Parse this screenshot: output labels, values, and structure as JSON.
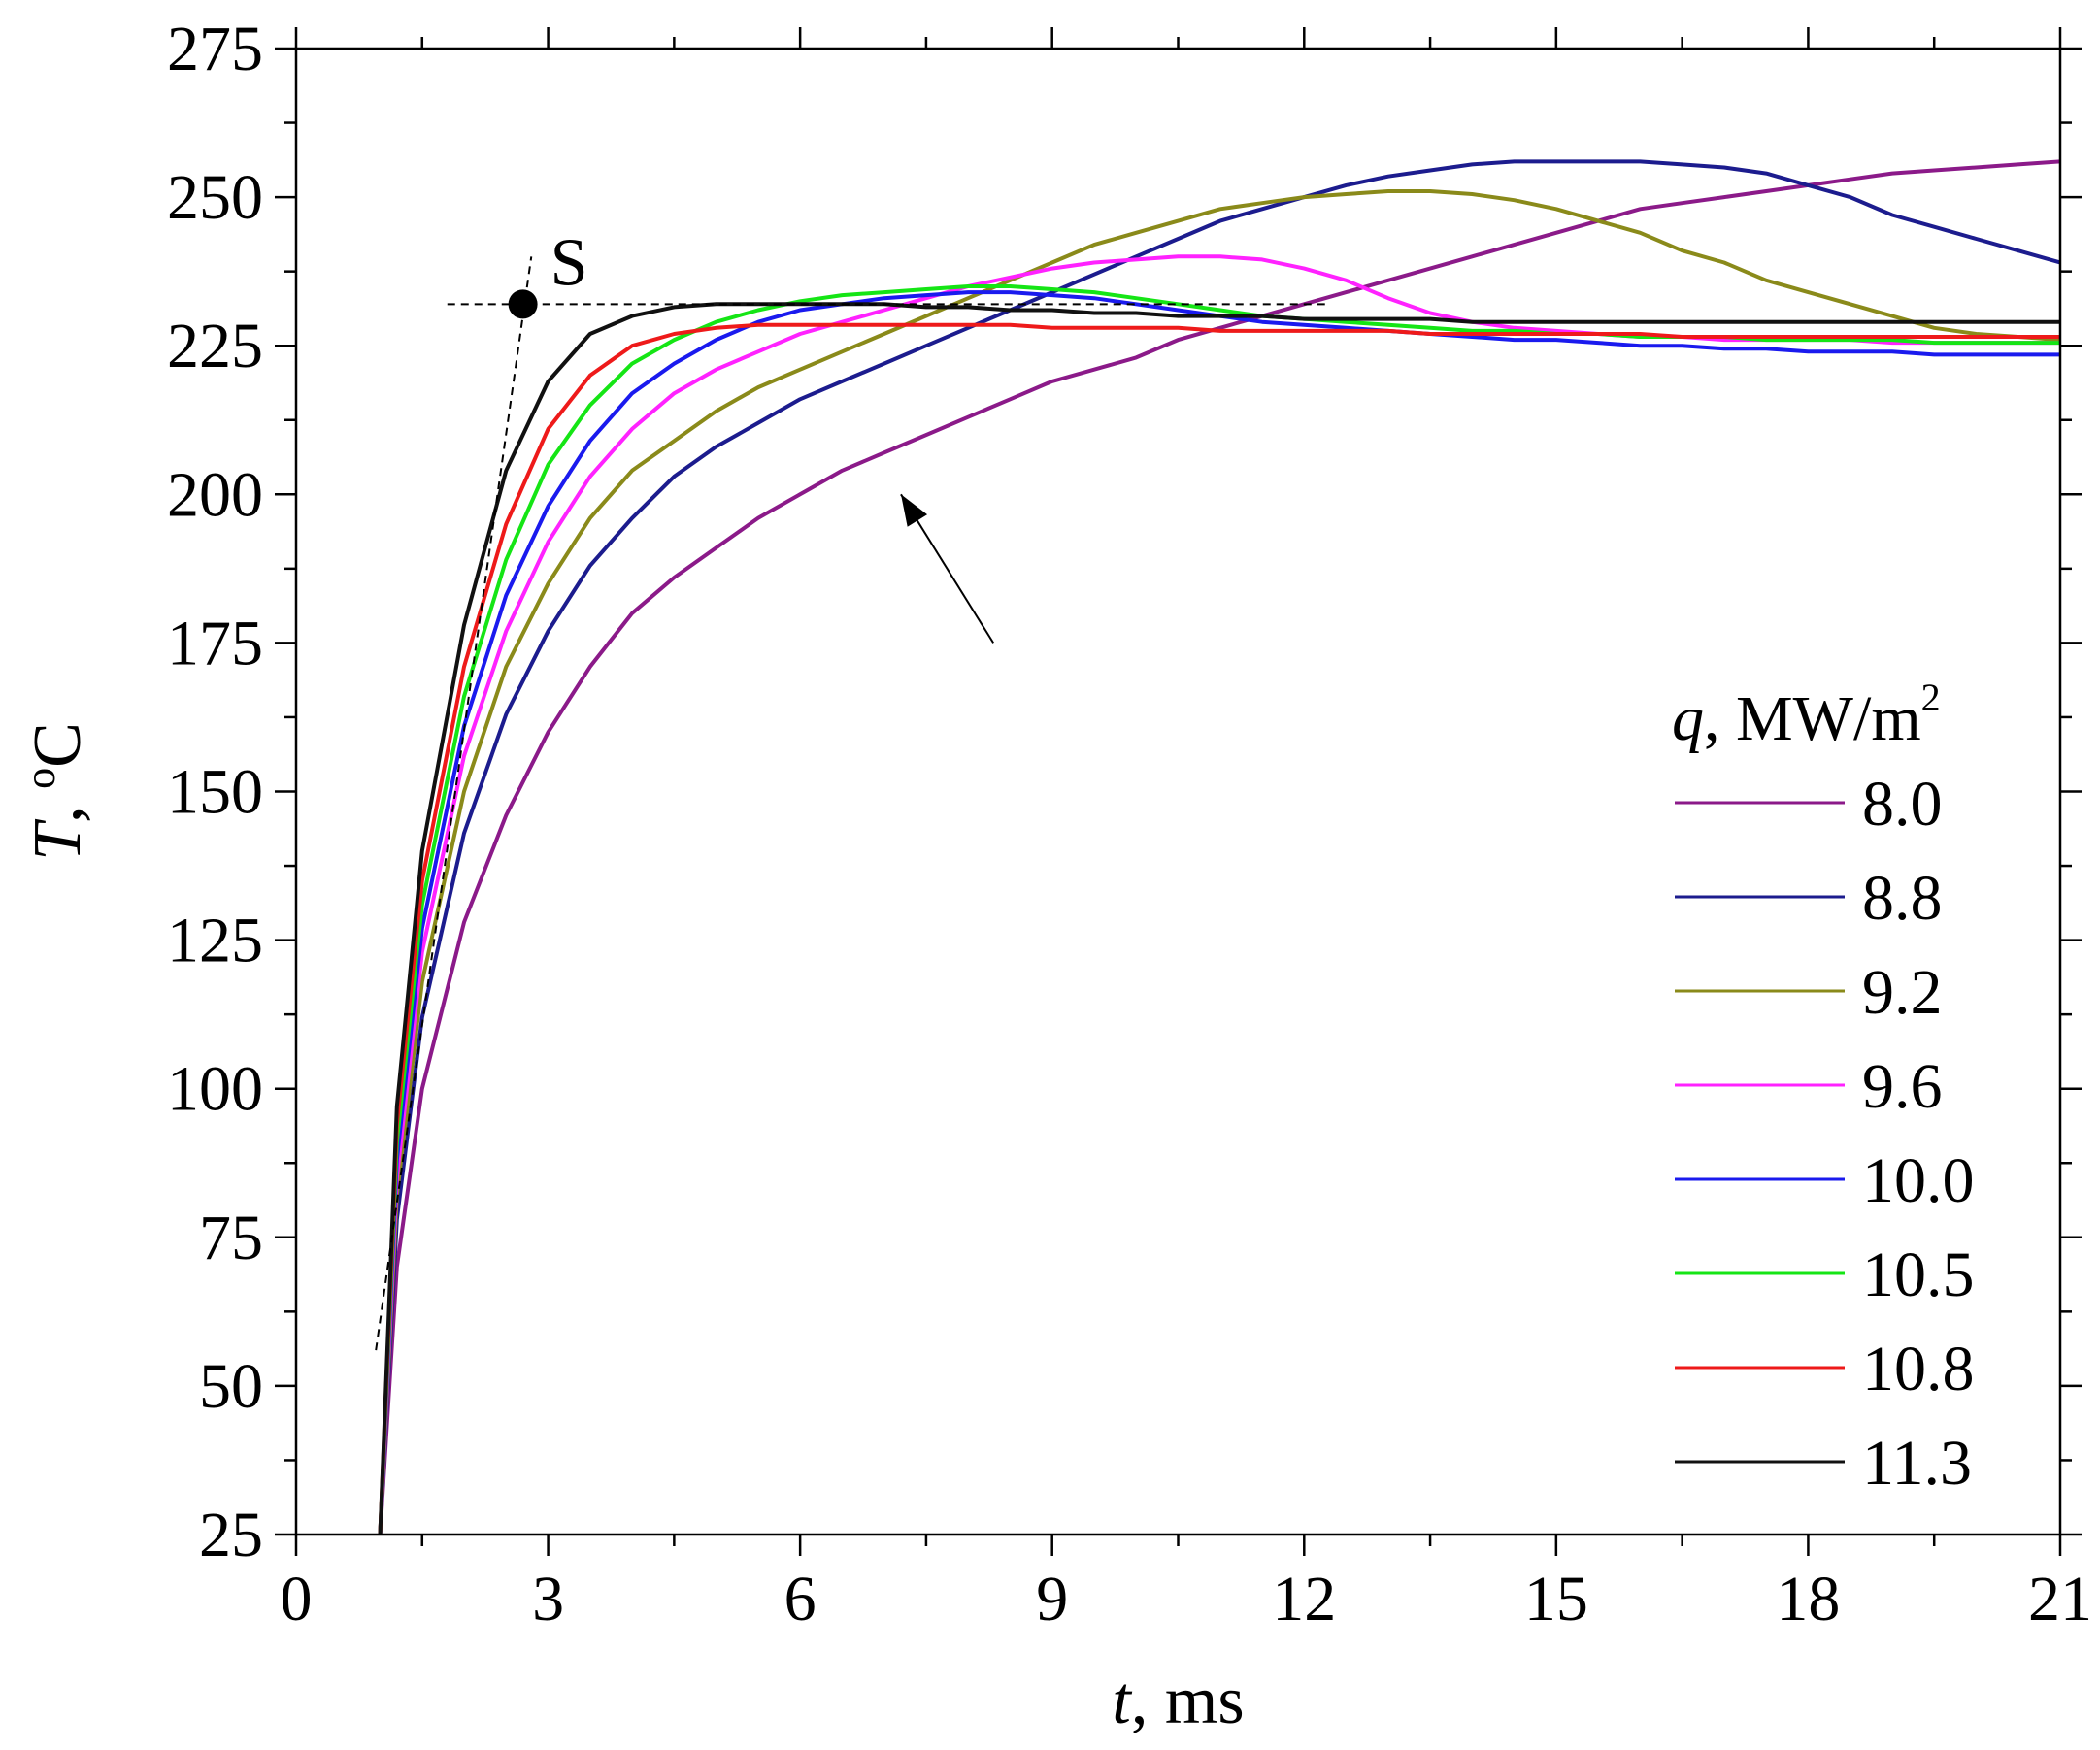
{
  "chart_data": {
    "type": "line",
    "title": "",
    "x": [
      1.0,
      1.2,
      1.5,
      2,
      2.5,
      3,
      3.5,
      4,
      4.5,
      5,
      5.5,
      6,
      6.5,
      7,
      7.5,
      8,
      8.5,
      9,
      9.5,
      10,
      10.5,
      11,
      11.5,
      12,
      12.5,
      13,
      13.5,
      14,
      14.5,
      15,
      15.5,
      16,
      16.5,
      17,
      17.5,
      18,
      18.5,
      19,
      19.5,
      20,
      20.5,
      21
    ],
    "series": [
      {
        "name": "8.0",
        "color": "#8b1a89",
        "values": [
          25,
          70,
          100,
          128,
          146,
          160,
          171,
          180,
          186,
          191,
          196,
          200,
          204,
          207,
          210,
          213,
          216,
          219,
          221,
          223,
          226,
          228,
          230,
          232,
          234,
          236,
          238,
          240,
          242,
          244,
          246,
          248,
          249,
          250,
          251,
          252,
          253,
          254,
          254.5,
          255,
          255.5,
          256
        ]
      },
      {
        "name": "8.8",
        "color": "#1c1c8e",
        "values": [
          25,
          78,
          112,
          143,
          163,
          177,
          188,
          196,
          203,
          208,
          212,
          216,
          219,
          222,
          225,
          228,
          231,
          234,
          237,
          240,
          243,
          246,
          248,
          250,
          252,
          253.5,
          254.5,
          255.5,
          256,
          256,
          256,
          256,
          255.5,
          255,
          254,
          252,
          250,
          247,
          245,
          243,
          241,
          239
        ]
      },
      {
        "name": "9.2",
        "color": "#8a8a1a",
        "values": [
          25,
          82,
          118,
          150,
          171,
          185,
          196,
          204,
          209,
          214,
          218,
          221,
          224,
          227,
          230,
          233,
          236,
          239,
          242,
          244,
          246,
          248,
          249,
          250,
          250.5,
          251,
          251,
          250.5,
          249.5,
          248,
          246,
          244,
          241,
          239,
          236,
          234,
          232,
          230,
          228,
          227,
          226.5,
          226
        ]
      },
      {
        "name": "9.6",
        "color": "#ff22ff",
        "values": [
          25,
          85,
          123,
          156,
          177,
          192,
          203,
          211,
          217,
          221,
          224,
          227,
          229,
          231,
          233,
          235,
          236.5,
          238,
          239,
          239.5,
          240,
          240,
          239.5,
          238,
          236,
          233,
          230.5,
          229,
          228,
          227.5,
          227,
          226.5,
          226.5,
          226,
          226,
          226,
          226,
          225.5,
          225.5,
          225.5,
          225.5,
          225.5
        ]
      },
      {
        "name": "10.0",
        "color": "#1a1aee",
        "values": [
          25,
          88,
          127,
          161,
          183,
          198,
          209,
          217,
          222,
          226,
          229,
          231,
          232,
          233,
          233.5,
          234,
          234,
          233.5,
          233,
          232,
          231,
          230,
          229,
          228.5,
          228,
          227.5,
          227,
          226.5,
          226,
          226,
          225.5,
          225,
          225,
          224.5,
          224.5,
          224,
          224,
          224,
          223.5,
          223.5,
          223.5,
          223.5
        ]
      },
      {
        "name": "10.5",
        "color": "#15e515",
        "values": [
          25,
          91,
          131,
          166,
          189,
          205,
          215,
          222,
          226,
          229,
          231,
          232.5,
          233.5,
          234,
          234.5,
          235,
          235,
          234.5,
          234,
          233,
          232,
          231,
          230,
          229.5,
          229,
          228.5,
          228,
          227.5,
          227.5,
          227,
          227,
          226.5,
          226.5,
          226.5,
          226,
          226,
          226,
          226,
          225.5,
          225.5,
          225.5,
          225.5
        ]
      },
      {
        "name": "10.8",
        "color": "#ee1a1a",
        "values": [
          25,
          94,
          135,
          171,
          195,
          211,
          220,
          225,
          227,
          228,
          228.5,
          228.5,
          228.5,
          228.5,
          228.5,
          228.5,
          228.5,
          228,
          228,
          228,
          228,
          227.5,
          227.5,
          227.5,
          227.5,
          227.5,
          227,
          227,
          227,
          227,
          227,
          227,
          226.5,
          226.5,
          226.5,
          226.5,
          226.5,
          226.5,
          226.5,
          226.5,
          226.5,
          226.5
        ]
      },
      {
        "name": "11.3",
        "color": "#111111",
        "values": [
          25,
          97,
          140,
          178,
          204,
          219,
          227,
          230,
          231.5,
          232,
          232,
          232,
          232,
          232,
          231.5,
          231.5,
          231,
          231,
          230.5,
          230.5,
          230,
          230,
          230,
          229.5,
          229.5,
          229.5,
          229.5,
          229,
          229,
          229,
          229,
          229,
          229,
          229,
          229,
          229,
          229,
          229,
          229,
          229,
          229,
          229
        ]
      }
    ],
    "xlabel_var": "t",
    "xlabel_unit": ", ms",
    "ylabel_var": "T",
    "ylabel_sep": ", ",
    "ylabel_sup": "o",
    "ylabel_unit": "C",
    "xlim": [
      0,
      21
    ],
    "ylim": [
      25,
      275
    ],
    "xticks": [
      0,
      3,
      6,
      9,
      12,
      15,
      18,
      21
    ],
    "yticks": [
      25,
      50,
      75,
      100,
      125,
      150,
      175,
      200,
      225,
      250,
      275
    ],
    "grid": false,
    "legend": {
      "title_var": "q",
      "title_unit": ", MW/m",
      "title_sup": "2",
      "placement": "right"
    },
    "annotations": {
      "point_label": "S",
      "point": [
        2.7,
        232
      ],
      "horizontal_line_y": 232,
      "horizontal_line_x": [
        1.8,
        12.3
      ],
      "tangent_line": [
        [
          0.95,
          56
        ],
        [
          2.8,
          240
        ]
      ],
      "arrow_from": [
        8.3,
        175
      ],
      "arrow_to": [
        7.2,
        200
      ]
    }
  }
}
